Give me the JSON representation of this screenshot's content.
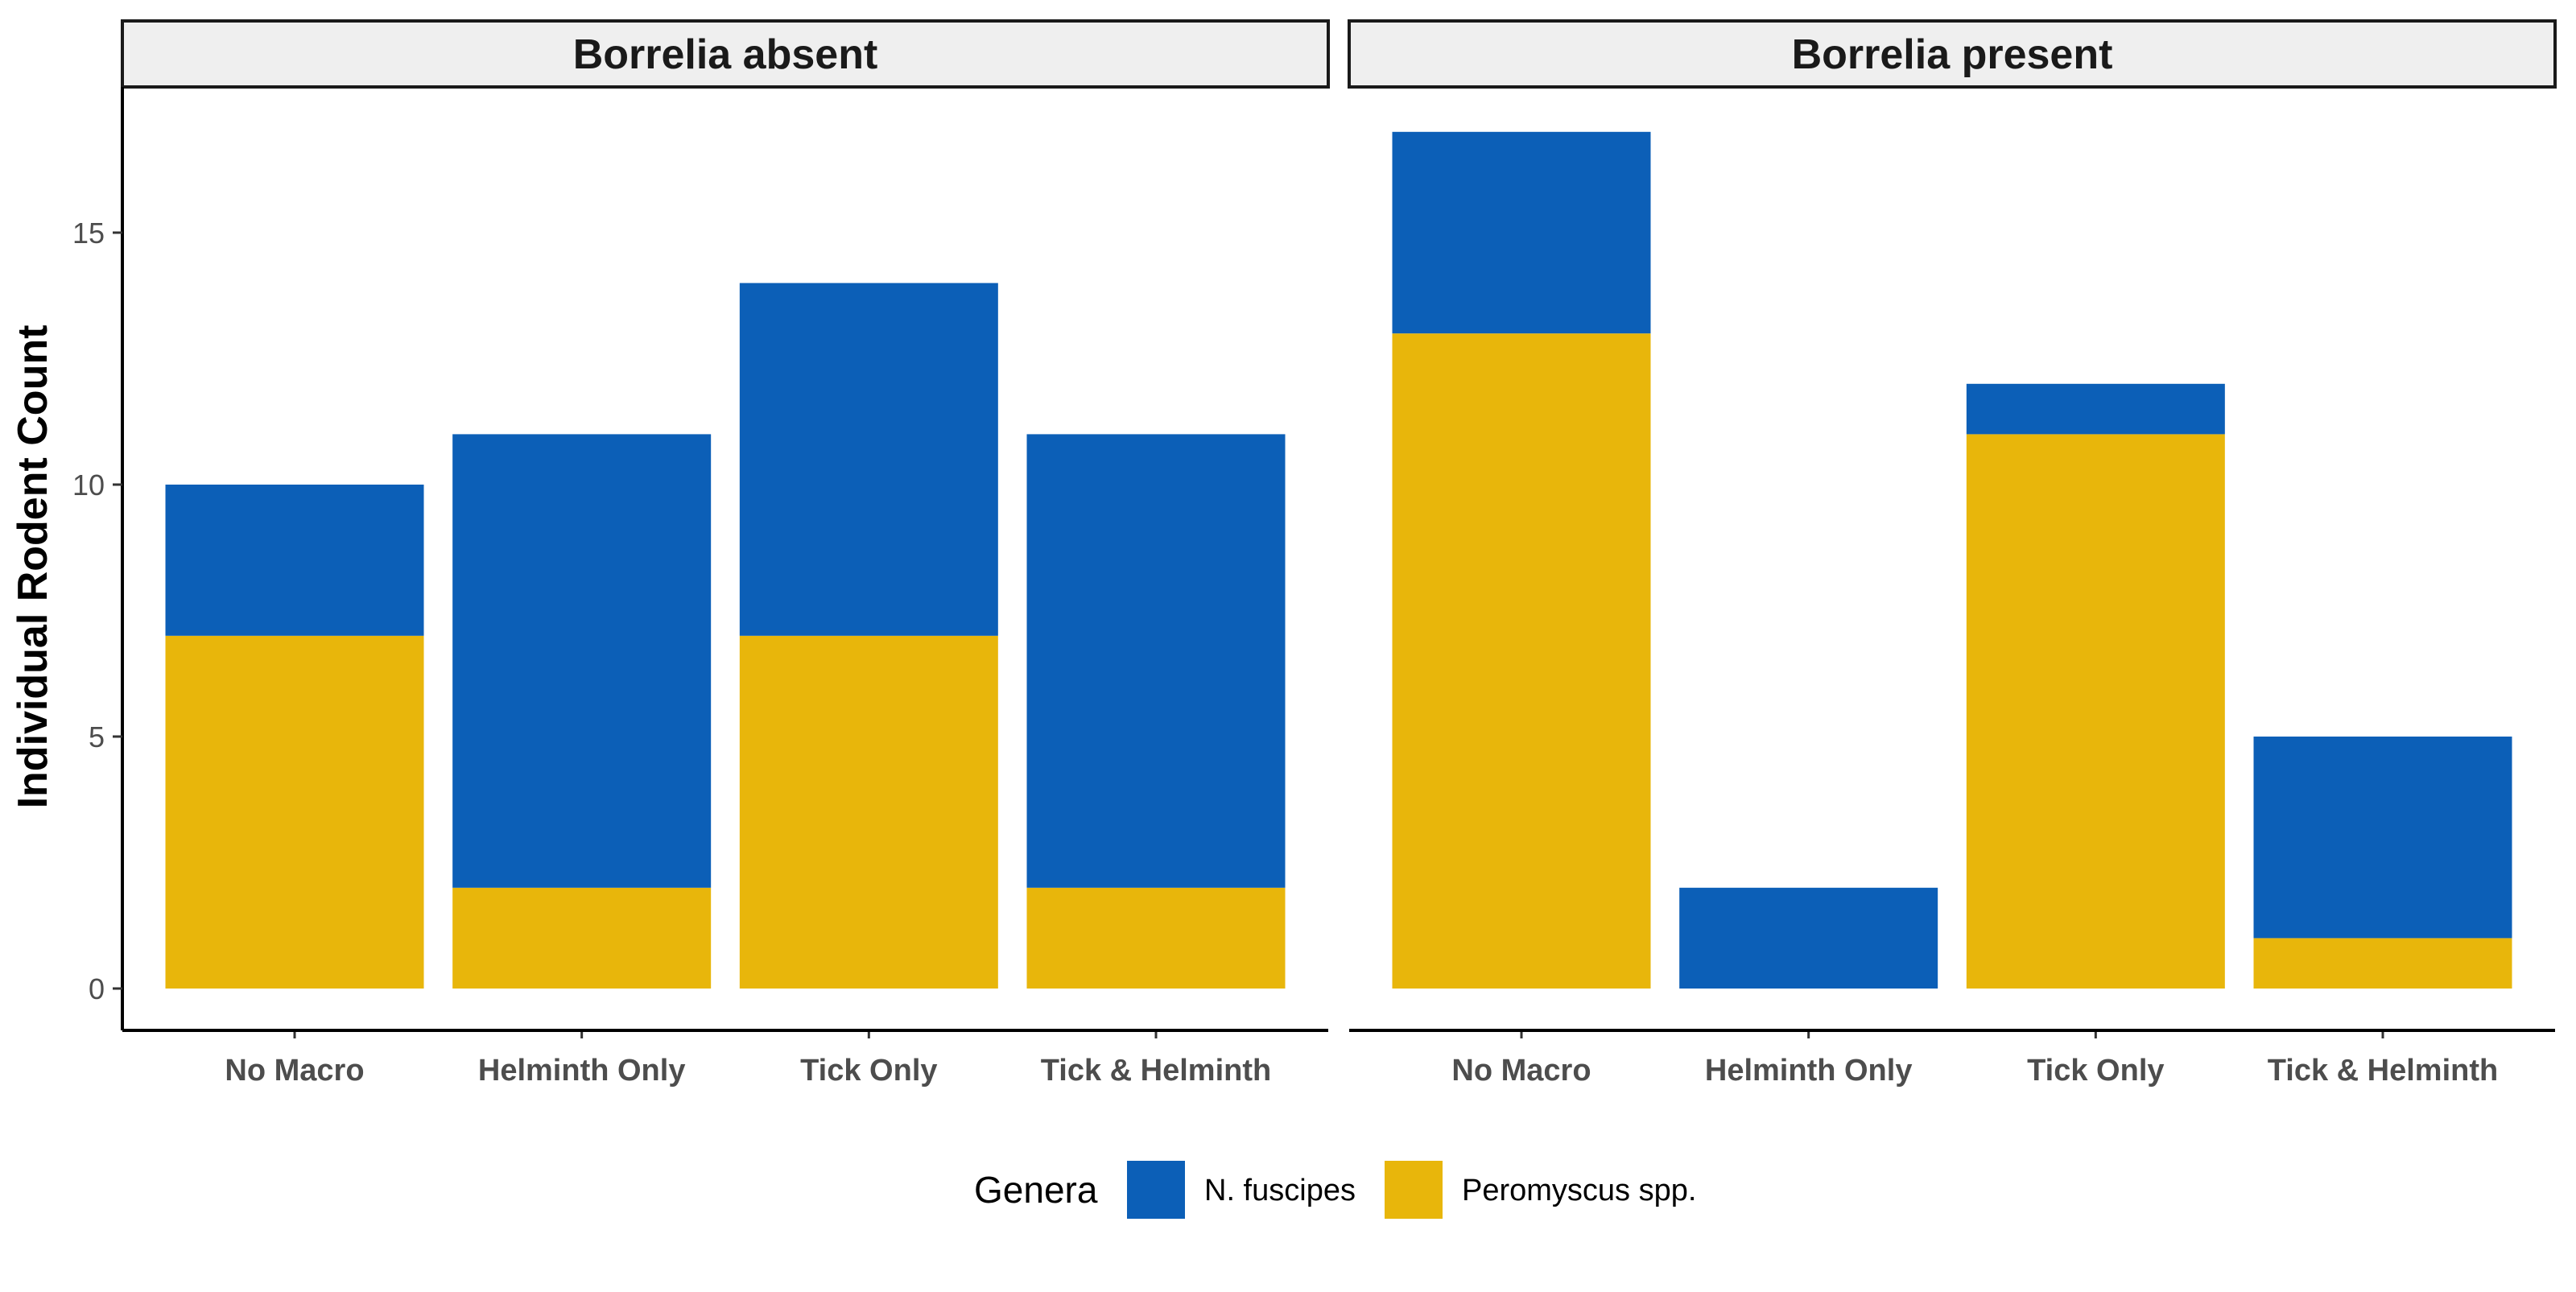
{
  "chart_data": {
    "type": "bar",
    "stacked": true,
    "ylabel": "Individual Rodent Count",
    "ylim": [
      0,
      17.8
    ],
    "y_ticks": [
      0,
      5,
      10,
      15
    ],
    "grid": false,
    "legend": {
      "title": "Genera",
      "placement": "bottom",
      "entries": [
        {
          "name": "N. fuscipes",
          "color": "#0C5FB7"
        },
        {
          "name": "Peromyscus spp.",
          "color": "#E8B60B"
        }
      ]
    },
    "categories": [
      "No Macro",
      "Helminth Only",
      "Tick Only",
      "Tick & Helminth"
    ],
    "stack_order": [
      "Peromyscus spp.",
      "N. fuscipes"
    ],
    "panels": [
      {
        "title": "Borrelia absent",
        "series": [
          {
            "name": "N. fuscipes",
            "values": [
              3,
              9,
              7,
              9
            ]
          },
          {
            "name": "Peromyscus spp.",
            "values": [
              7,
              2,
              7,
              2
            ]
          }
        ]
      },
      {
        "title": "Borrelia present",
        "series": [
          {
            "name": "N. fuscipes",
            "values": [
              4,
              2,
              1,
              4
            ]
          },
          {
            "name": "Peromyscus spp.",
            "values": [
              13,
              0,
              11,
              1
            ]
          }
        ]
      }
    ]
  }
}
